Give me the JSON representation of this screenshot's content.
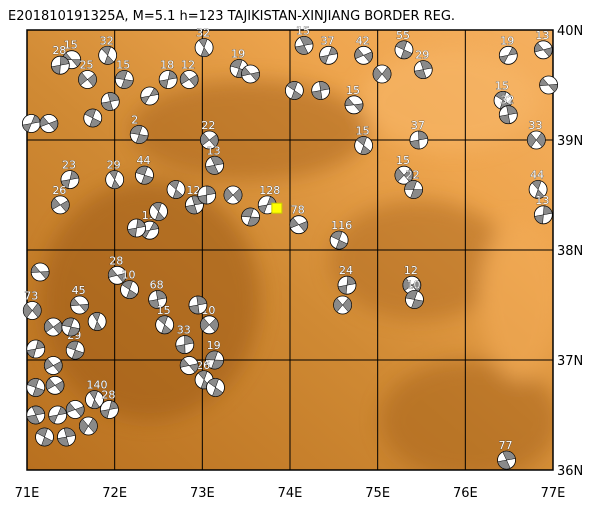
{
  "title": "E201810191325A, M=5.1  h=123  TAJIKISTAN-XINJIANG BORDER REG.",
  "lon_ticks": [
    {
      "value": 71,
      "label": "71E"
    },
    {
      "value": 72,
      "label": "72E"
    },
    {
      "value": 73,
      "label": "73E"
    },
    {
      "value": 74,
      "label": "74E"
    },
    {
      "value": 75,
      "label": "75E"
    },
    {
      "value": 76,
      "label": "76E"
    },
    {
      "value": 77,
      "label": "77E"
    }
  ],
  "lat_ticks": [
    {
      "value": 36,
      "label": "36N"
    },
    {
      "value": 37,
      "label": "37N"
    },
    {
      "value": 38,
      "label": "38N"
    },
    {
      "value": 39,
      "label": "39N"
    },
    {
      "value": 40,
      "label": "40N"
    }
  ],
  "lon_range": [
    71,
    77
  ],
  "lat_range": [
    36,
    40
  ],
  "main_event": {
    "lon": 73.85,
    "lat": 38.38
  },
  "events": [
    {
      "label": "15",
      "lon": 71.51,
      "lat": 39.73
    },
    {
      "label": "32",
      "lon": 71.92,
      "lat": 39.77
    },
    {
      "label": "28",
      "lon": 71.38,
      "lat": 39.68
    },
    {
      "label": "25",
      "lon": 71.69,
      "lat": 39.55
    },
    {
      "label": "15",
      "lon": 72.11,
      "lat": 39.55
    },
    {
      "label": "32",
      "lon": 73.02,
      "lat": 39.84
    },
    {
      "label": "18",
      "lon": 72.61,
      "lat": 39.55
    },
    {
      "label": "12",
      "lon": 72.85,
      "lat": 39.55
    },
    {
      "label": "19",
      "lon": 73.42,
      "lat": 39.65
    },
    {
      "label": "15",
      "lon": 74.16,
      "lat": 39.86
    },
    {
      "label": "37",
      "lon": 74.44,
      "lat": 39.77
    },
    {
      "label": "42",
      "lon": 74.84,
      "lat": 39.77
    },
    {
      "label": "55",
      "lon": 75.3,
      "lat": 39.82
    },
    {
      "label": "29",
      "lon": 75.52,
      "lat": 39.64
    },
    {
      "label": "19",
      "lon": 76.49,
      "lat": 39.77
    },
    {
      "label": "13",
      "lon": 76.89,
      "lat": 39.82
    },
    {
      "label": "15",
      "lon": 76.43,
      "lat": 39.36
    },
    {
      "label": "32",
      "lon": 76.49,
      "lat": 39.23
    },
    {
      "label": "33",
      "lon": 76.81,
      "lat": 39.0
    },
    {
      "label": "15",
      "lon": 74.73,
      "lat": 39.32
    },
    {
      "label": "15",
      "lon": 74.84,
      "lat": 38.95
    },
    {
      "label": "37",
      "lon": 75.47,
      "lat": 39.0
    },
    {
      "label": "15",
      "lon": 75.3,
      "lat": 38.68
    },
    {
      "label": "22",
      "lon": 75.41,
      "lat": 38.55
    },
    {
      "label": "44",
      "lon": 76.83,
      "lat": 38.55
    },
    {
      "label": "13",
      "lon": 76.89,
      "lat": 38.32
    },
    {
      "label": "22",
      "lon": 73.08,
      "lat": 39.0
    },
    {
      "label": "2",
      "lon": 72.28,
      "lat": 39.05
    },
    {
      "label": "29",
      "lon": 72.0,
      "lat": 38.64
    },
    {
      "label": "23",
      "lon": 71.49,
      "lat": 38.64
    },
    {
      "label": "26",
      "lon": 71.38,
      "lat": 38.41
    },
    {
      "label": "44",
      "lon": 72.34,
      "lat": 38.68
    },
    {
      "label": "13",
      "lon": 73.14,
      "lat": 38.77
    },
    {
      "label": "128",
      "lon": 73.74,
      "lat": 38.41
    },
    {
      "label": "78",
      "lon": 74.1,
      "lat": 38.23
    },
    {
      "label": "116",
      "lon": 74.56,
      "lat": 38.09
    },
    {
      "label": "12",
      "lon": 72.91,
      "lat": 38.41
    },
    {
      "label": "15",
      "lon": 72.4,
      "lat": 38.18
    },
    {
      "label": "28",
      "lon": 72.03,
      "lat": 37.77
    },
    {
      "label": "10",
      "lon": 72.17,
      "lat": 37.64
    },
    {
      "label": "68",
      "lon": 72.49,
      "lat": 37.55
    },
    {
      "label": "73",
      "lon": 71.06,
      "lat": 37.45
    },
    {
      "label": "45",
      "lon": 71.6,
      "lat": 37.5
    },
    {
      "label": "15",
      "lon": 72.57,
      "lat": 37.32
    },
    {
      "label": "33",
      "lon": 72.8,
      "lat": 37.14
    },
    {
      "label": "10",
      "lon": 73.08,
      "lat": 37.32
    },
    {
      "label": "19",
      "lon": 73.14,
      "lat": 37.0
    },
    {
      "label": "26",
      "lon": 73.02,
      "lat": 36.82
    },
    {
      "label": "24",
      "lon": 74.65,
      "lat": 37.68
    },
    {
      "label": "12",
      "lon": 75.39,
      "lat": 37.68
    },
    {
      "label": "10",
      "lon": 75.42,
      "lat": 37.55
    },
    {
      "label": "140",
      "lon": 71.77,
      "lat": 36.64
    },
    {
      "label": "28",
      "lon": 71.94,
      "lat": 36.55
    },
    {
      "label": "8",
      "lon": 71.32,
      "lat": 36.77
    },
    {
      "label": "29",
      "lon": 71.55,
      "lat": 37.09
    },
    {
      "label": "77",
      "lon": 76.47,
      "lat": 36.09
    },
    {
      "lon": 71.05,
      "lat": 39.15
    },
    {
      "lon": 71.25,
      "lat": 39.15
    },
    {
      "lon": 71.75,
      "lat": 39.2
    },
    {
      "lon": 71.95,
      "lat": 39.35
    },
    {
      "lon": 72.4,
      "lat": 39.4
    },
    {
      "lon": 73.55,
      "lat": 39.6
    },
    {
      "lon": 74.05,
      "lat": 39.45
    },
    {
      "lon": 74.35,
      "lat": 39.45
    },
    {
      "lon": 75.05,
      "lat": 39.6
    },
    {
      "lon": 76.95,
      "lat": 39.5
    },
    {
      "lon": 72.7,
      "lat": 38.55
    },
    {
      "lon": 73.05,
      "lat": 38.5
    },
    {
      "lon": 73.35,
      "lat": 38.5
    },
    {
      "lon": 73.55,
      "lat": 38.3
    },
    {
      "lon": 72.5,
      "lat": 38.35
    },
    {
      "lon": 72.25,
      "lat": 38.2
    },
    {
      "lon": 71.3,
      "lat": 37.3
    },
    {
      "lon": 71.5,
      "lat": 37.3
    },
    {
      "lon": 71.8,
      "lat": 37.35
    },
    {
      "lon": 71.1,
      "lat": 37.1
    },
    {
      "lon": 71.3,
      "lat": 36.95
    },
    {
      "lon": 71.1,
      "lat": 36.75
    },
    {
      "lon": 71.1,
      "lat": 36.5
    },
    {
      "lon": 71.35,
      "lat": 36.5
    },
    {
      "lon": 71.55,
      "lat": 36.55
    },
    {
      "lon": 71.2,
      "lat": 36.3
    },
    {
      "lon": 71.45,
      "lat": 36.3
    },
    {
      "lon": 71.7,
      "lat": 36.4
    },
    {
      "lon": 72.85,
      "lat": 36.95
    },
    {
      "lon": 73.15,
      "lat": 36.75
    },
    {
      "lon": 72.95,
      "lat": 37.5
    },
    {
      "lon": 74.6,
      "lat": 37.5
    },
    {
      "lon": 71.15,
      "lat": 37.8
    }
  ]
}
